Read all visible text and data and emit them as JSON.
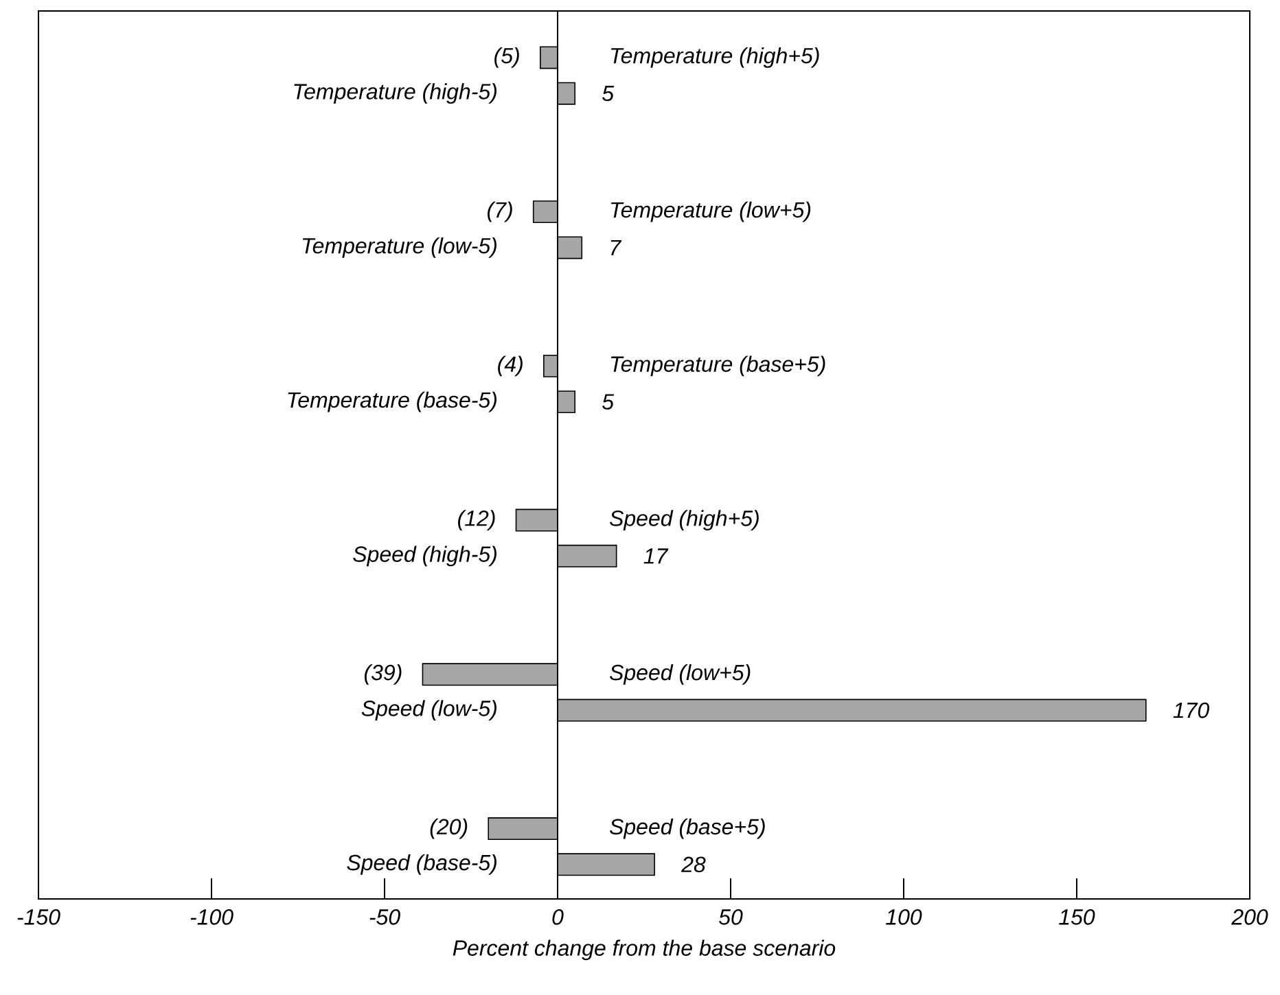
{
  "chart_data": {
    "type": "bar",
    "orientation": "horizontal",
    "xlabel": "Percent change from the base scenario",
    "categories": [
      "Temperature (high+5)",
      "Temperature (high-5)",
      "Temperature (low+5)",
      "Temperature (low-5)",
      "Temperature (base+5)",
      "Temperature (base-5)",
      "Speed (high+5)",
      "Speed (high-5)",
      "Speed (low+5)",
      "Speed (low-5)",
      "Speed (base+5)",
      "Speed (base-5)"
    ],
    "values": [
      -5,
      5,
      -7,
      7,
      -4,
      5,
      -12,
      17,
      -39,
      170,
      -20,
      28
    ],
    "value_labels": [
      "(5)",
      "5",
      "(7)",
      "7",
      "(4)",
      "5",
      "(12)",
      "17",
      "(39)",
      "170",
      "(20)",
      "28"
    ],
    "color": "#a6a6a6",
    "xlim": [
      -150,
      200
    ],
    "xticks": [
      -150,
      -100,
      -50,
      0,
      50,
      100,
      150,
      200
    ],
    "ref_lines": [
      {
        "axis": "x",
        "value": 0
      }
    ]
  }
}
